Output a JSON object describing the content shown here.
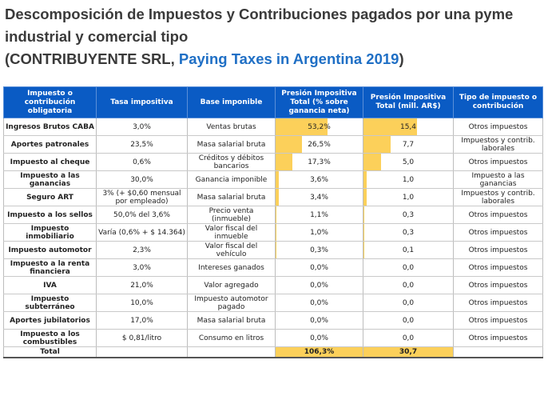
{
  "title": {
    "line1": "Descomposición de Impuestos y Contribuciones pagados por una pyme",
    "line2": "industrial y comercial tipo",
    "line3_prefix": "(CONTRIBUYENTE SRL, ",
    "line3_link": "Paying Taxes in Argentina 2019",
    "line3_suffix": ")"
  },
  "table": {
    "headers": [
      "Impuesto o contribución obligatoria",
      "Tasa impositiva",
      "Base imponible",
      "Presión Impositiva Total (% sobre ganancia neta)",
      "Presión Impositiva Total (mill. AR$)",
      "Tipo de impuesto o contribución"
    ],
    "rows": [
      {
        "name": "Ingresos Brutos CABA",
        "rate": "3,0%",
        "base": "Ventas brutas",
        "pct": "53,2%",
        "pct_value": 53.2,
        "mill": "15,4",
        "mill_value": 15.4,
        "type": "Otros impuestos"
      },
      {
        "name": "Aportes patronales",
        "rate": "23,5%",
        "base": "Masa salarial bruta",
        "pct": "26,5%",
        "pct_value": 26.5,
        "mill": "7,7",
        "mill_value": 7.7,
        "type": "Impuestos y contrib. laborales"
      },
      {
        "name": "Impuesto al cheque",
        "rate": "0,6%",
        "base": "Créditos y débitos bancarios",
        "pct": "17,3%",
        "pct_value": 17.3,
        "mill": "5,0",
        "mill_value": 5.0,
        "type": "Otros impuestos"
      },
      {
        "name": "Impuesto a las ganancias",
        "rate": "30,0%",
        "base": "Ganancia imponible",
        "pct": "3,6%",
        "pct_value": 3.6,
        "mill": "1,0",
        "mill_value": 1.0,
        "type": "Impuesto a las ganancias"
      },
      {
        "name": "Seguro ART",
        "rate": "3% (+ $0,60 mensual por empleado)",
        "base": "Masa salarial bruta",
        "pct": "3,4%",
        "pct_value": 3.4,
        "mill": "1,0",
        "mill_value": 1.0,
        "type": "Impuestos y contrib. laborales"
      },
      {
        "name": "Impuesto a los sellos",
        "rate": "50,0% del 3,6%",
        "base": "Precio venta (inmueble)",
        "pct": "1,1%",
        "pct_value": 1.1,
        "mill": "0,3",
        "mill_value": 0.3,
        "type": "Otros impuestos"
      },
      {
        "name": "Impuesto inmobiliario",
        "rate": "Varía (0,6% + $ 14.364)",
        "base": "Valor fiscal del inmueble",
        "pct": "1,0%",
        "pct_value": 1.0,
        "mill": "0,3",
        "mill_value": 0.3,
        "type": "Otros impuestos"
      },
      {
        "name": "Impuesto automotor",
        "rate": "2,3%",
        "base": "Valor fiscal del vehículo",
        "pct": "0,3%",
        "pct_value": 0.3,
        "mill": "0,1",
        "mill_value": 0.1,
        "type": "Otros impuestos"
      },
      {
        "name": "Impuesto a la renta financiera",
        "rate": "3,0%",
        "base": "Intereses ganados",
        "pct": "0,0%",
        "pct_value": 0.0,
        "mill": "0,0",
        "mill_value": 0.0,
        "type": "Otros impuestos"
      },
      {
        "name": "IVA",
        "rate": "21,0%",
        "base": "Valor agregado",
        "pct": "0,0%",
        "pct_value": 0.0,
        "mill": "0,0",
        "mill_value": 0.0,
        "type": "Otros impuestos"
      },
      {
        "name": "Impuesto subterráneo",
        "rate": "10,0%",
        "base": "Impuesto automotor pagado",
        "pct": "0,0%",
        "pct_value": 0.0,
        "mill": "0,0",
        "mill_value": 0.0,
        "type": "Otros impuestos"
      },
      {
        "name": "Aportes jubilatorios",
        "rate": "17,0%",
        "base": "Masa salarial bruta",
        "pct": "0,0%",
        "pct_value": 0.0,
        "mill": "0,0",
        "mill_value": 0.0,
        "type": "Otros impuestos"
      },
      {
        "name": "Impuesto a los combustibles",
        "rate": "$ 0,81/litro",
        "base": "Consumo en litros",
        "pct": "0,0%",
        "pct_value": 0.0,
        "mill": "0,0",
        "mill_value": 0.0,
        "type": "Otros impuestos"
      }
    ],
    "total": {
      "name": "Total",
      "pct": "106,3%",
      "mill": "30,7"
    },
    "bar_color": "#fcd05a",
    "header_color": "#0a5bc4"
  }
}
